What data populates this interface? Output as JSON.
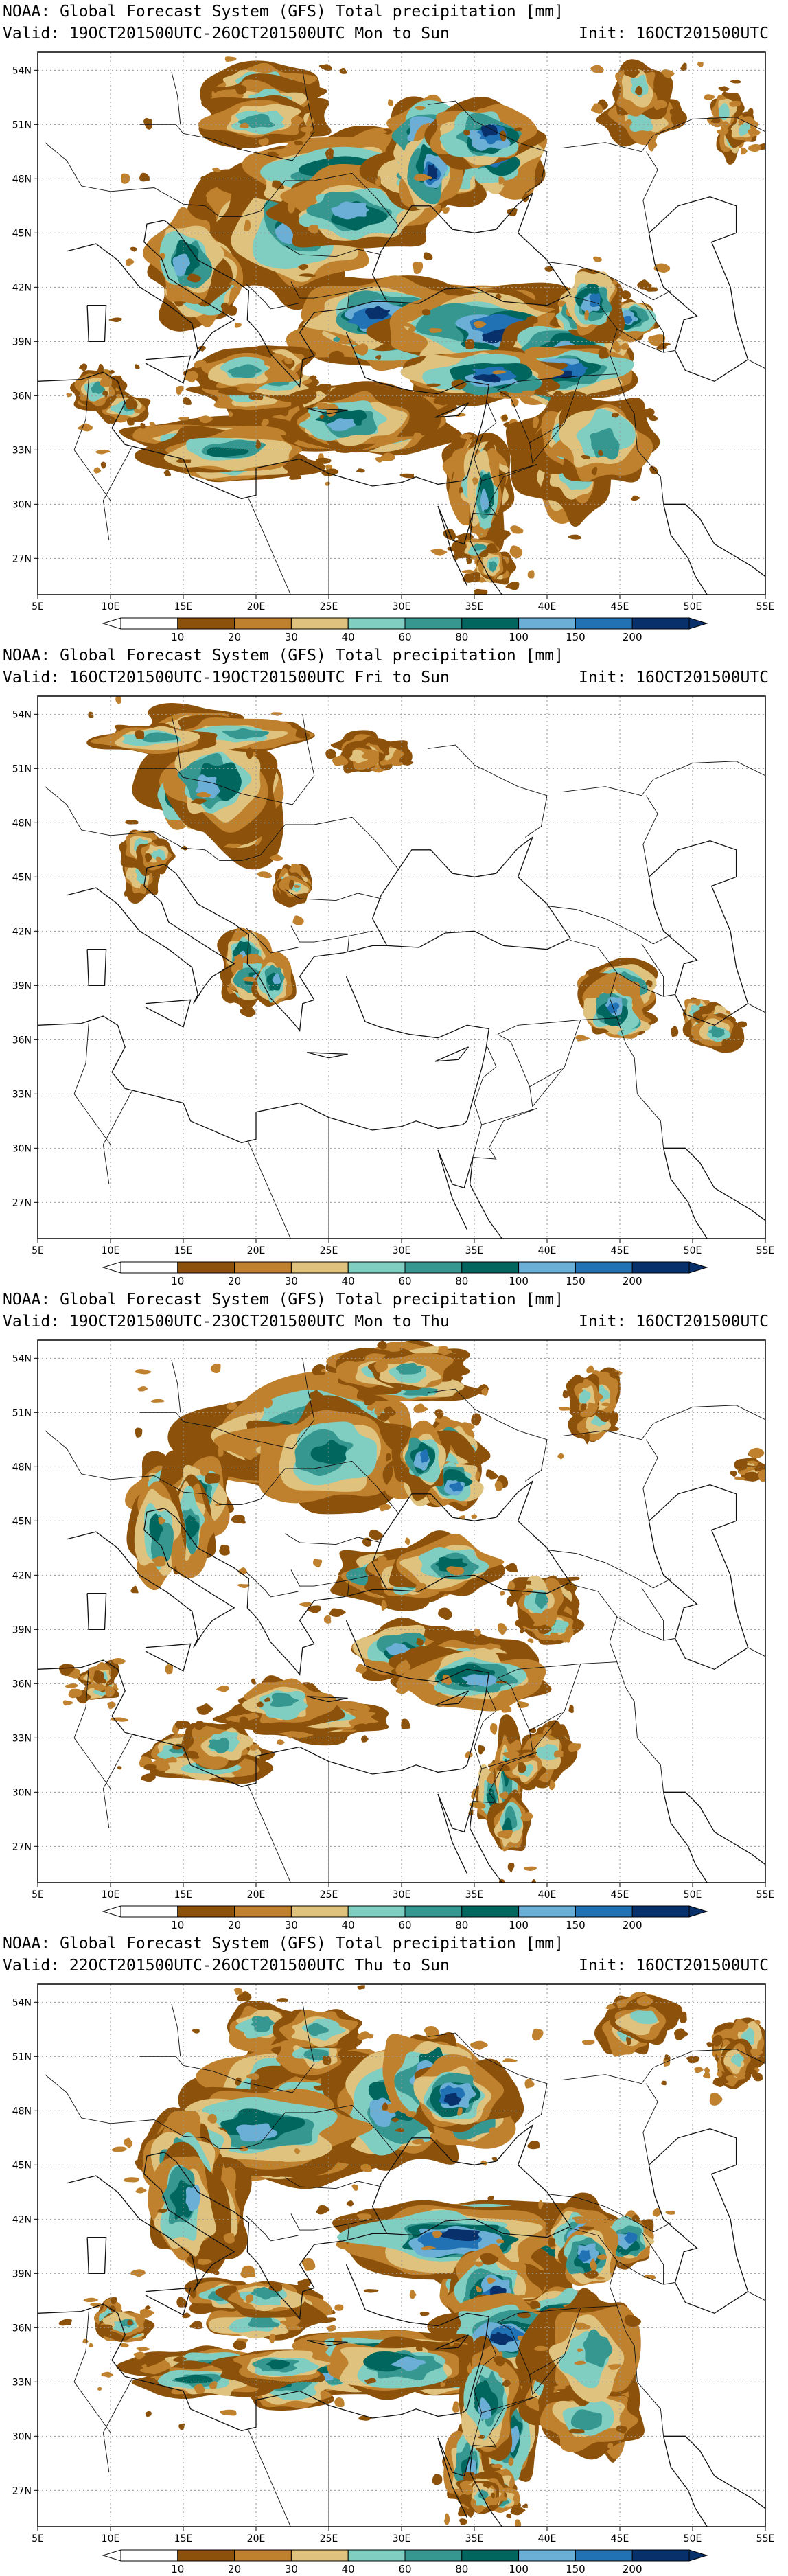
{
  "colors": {
    "levels": [
      "#8c510a",
      "#bf812d",
      "#dfc27d",
      "#80cdc1",
      "#35978f",
      "#01665e",
      "#6baed6",
      "#2171b5",
      "#08306b"
    ],
    "coast": "#111111",
    "grid": "#9a9a9a"
  },
  "colorbar": {
    "labels": [
      "10",
      "20",
      "30",
      "40",
      "60",
      "80",
      "100",
      "150",
      "200"
    ]
  },
  "axes": {
    "x_ticks": [
      "5E",
      "10E",
      "15E",
      "20E",
      "25E",
      "30E",
      "35E",
      "40E",
      "45E",
      "50E",
      "55E"
    ],
    "y_ticks": [
      "54N",
      "51N",
      "48N",
      "45N",
      "42N",
      "39N",
      "36N",
      "33N",
      "30N",
      "27N"
    ]
  },
  "panels": [
    {
      "title": "NOAA: Global Forecast System (GFS) Total precipitation [mm]",
      "valid": "Valid: 19OCT201500UTC-26OCT201500UTC Mon to Sun",
      "init": "Init: 16OCT201500UTC",
      "coverage": "wide"
    },
    {
      "title": "NOAA: Global Forecast System (GFS) Total precipitation [mm]",
      "valid": "Valid: 16OCT201500UTC-19OCT201500UTC Fri to Sun",
      "init": "Init: 16OCT201500UTC",
      "coverage": "sparse"
    },
    {
      "title": "NOAA: Global Forecast System (GFS) Total precipitation [mm]",
      "valid": "Valid: 19OCT201500UTC-23OCT201500UTC Mon to Thu",
      "init": "Init: 16OCT201500UTC",
      "coverage": "medium"
    },
    {
      "title": "NOAA: Global Forecast System (GFS) Total precipitation [mm]",
      "valid": "Valid: 22OCT201500UTC-26OCT201500UTC Thu to Sun",
      "init": "Init: 16OCT201500UTC",
      "coverage": "wide"
    }
  ]
}
